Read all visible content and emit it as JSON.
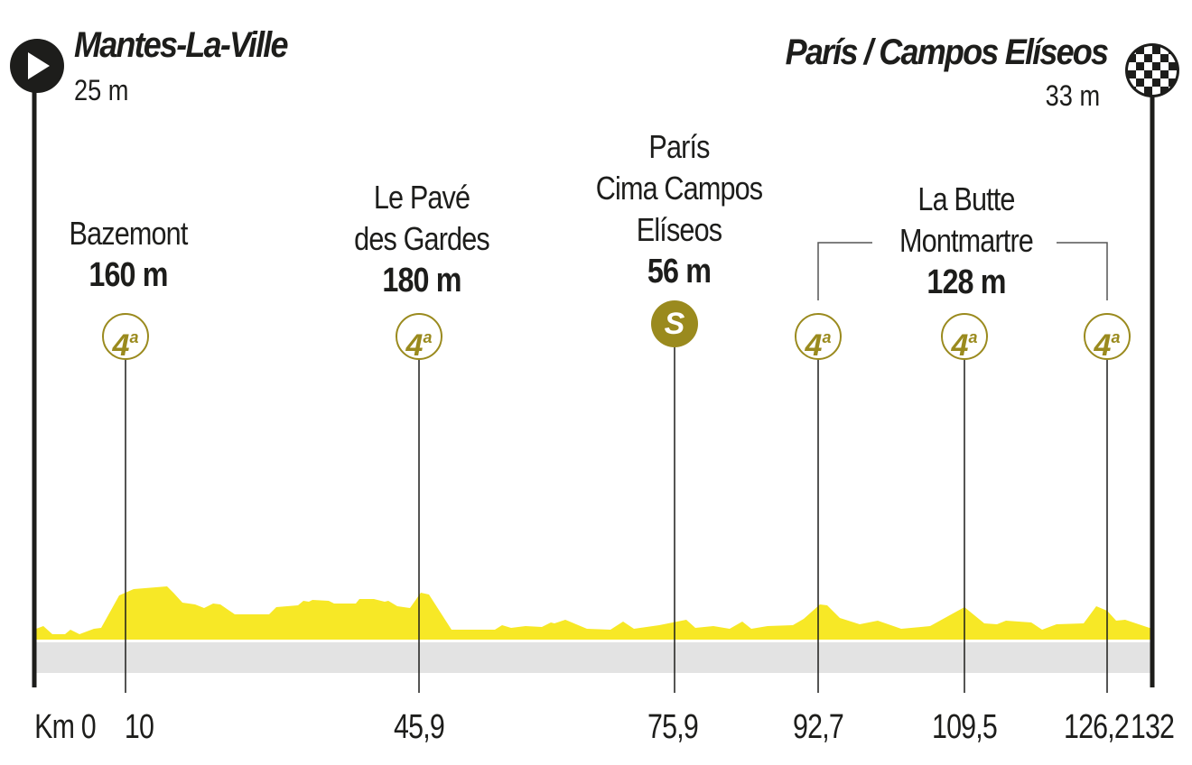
{
  "start": {
    "name": "Mantes-La-Ville",
    "altitude": "25 m",
    "icon": "play-icon"
  },
  "finish": {
    "name": "París / Campos Elíseos",
    "altitude": "33 m",
    "icon": "checkered-flag-icon"
  },
  "climbs": [
    {
      "name": "Bazemont",
      "altitude": "160 m",
      "category": "4",
      "sup": "a",
      "km": "10"
    },
    {
      "name_1": "Le Pavé",
      "name_2": "des Gardes",
      "altitude": "180 m",
      "category": "4",
      "sup": "a",
      "km": "45,9"
    },
    {
      "name_1": "París",
      "name_2": "Cima Campos",
      "name_3": "Elíseos",
      "altitude": "56 m",
      "category": "S",
      "km": "75,9"
    },
    {
      "name_1": "La Butte",
      "name_2": "Montmartre",
      "altitude": "128 m",
      "category": "4",
      "sup": "a",
      "km": [
        "92,7",
        "109,5",
        "126,2"
      ]
    }
  ],
  "axis": {
    "start_label": "Km 0",
    "end": "132"
  },
  "colors": {
    "profile": "#f7e826",
    "category": "#9a8a1e",
    "ground": "#e3e3e3"
  }
}
